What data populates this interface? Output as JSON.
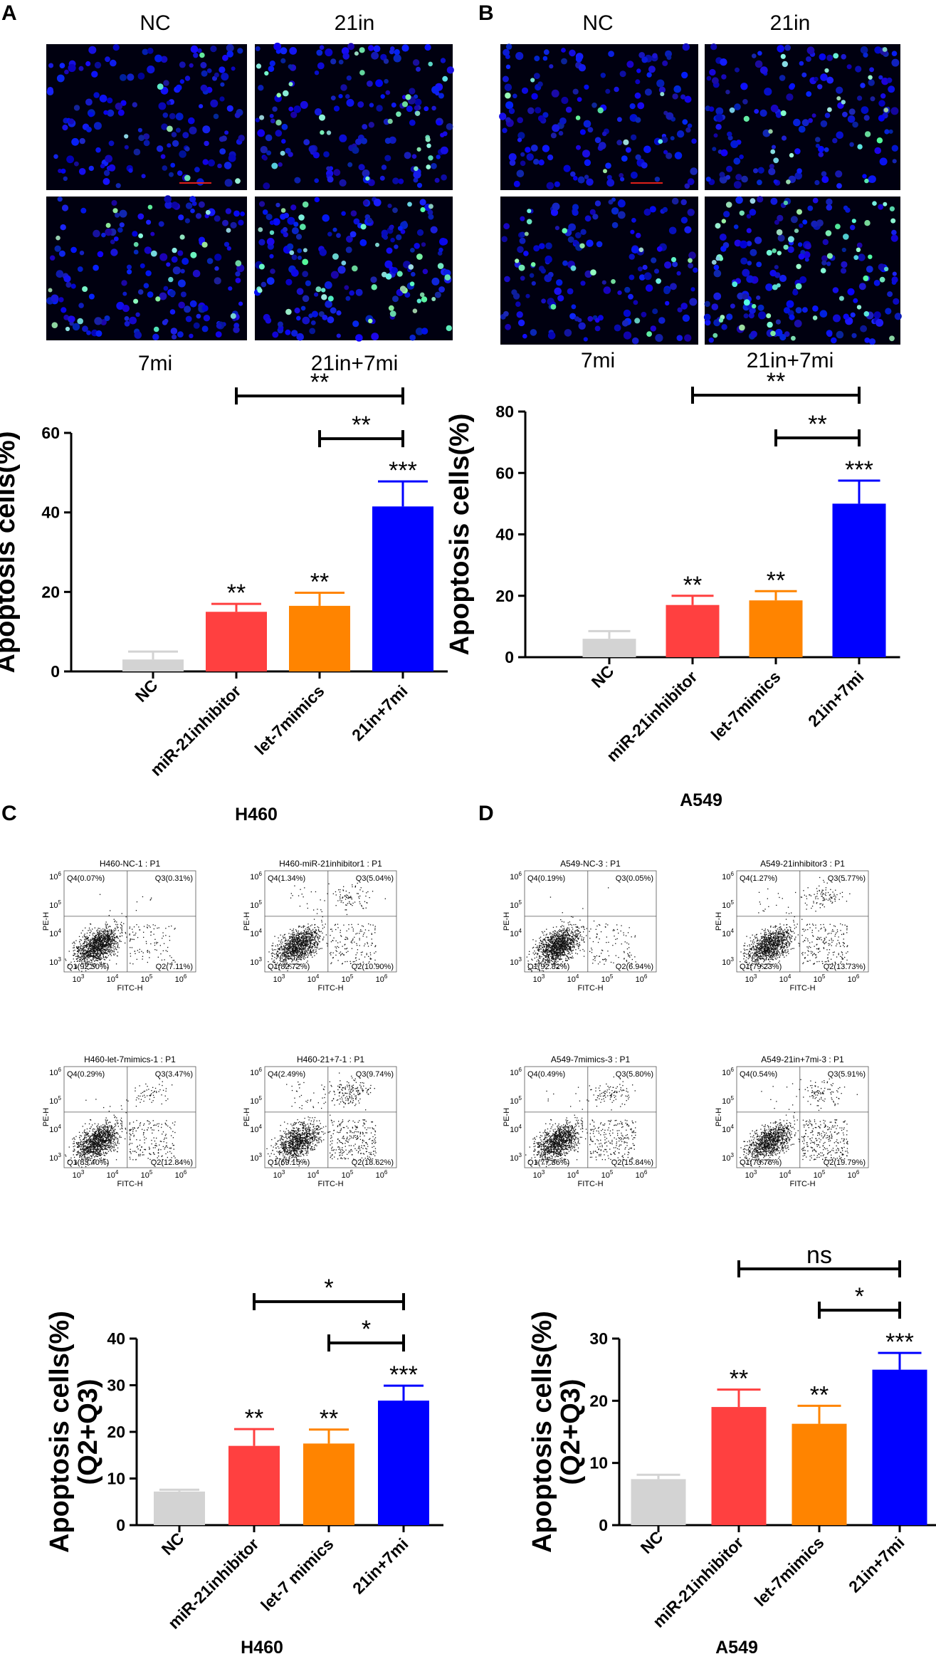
{
  "panels": {
    "A": {
      "letter": "A",
      "top_left": "NC",
      "top_right": "21in",
      "bottom_left": "7mi",
      "bottom_right": "21in+7mi"
    },
    "B": {
      "letter": "B",
      "top_left": "NC",
      "top_right": "21in",
      "bottom_left": "7mi",
      "bottom_right": "21in+7mi"
    },
    "C": {
      "letter": "C",
      "group": "H460"
    },
    "D": {
      "letter": "D",
      "group": "A549"
    }
  },
  "flow": {
    "C": [
      {
        "title": "H460-NC-1 : P1",
        "q4": "Q4(0.07%)",
        "q3": "Q3(0.31%)",
        "q1": "Q1(92.50%)",
        "q2": "Q2(7.11%)",
        "xlabel": "FITC-H",
        "ylabel": "PE-H"
      },
      {
        "title": "H460-miR-21inhibitor1 : P1",
        "q4": "Q4(1.34%)",
        "q3": "Q3(5.04%)",
        "q1": "Q1(82.72%)",
        "q2": "Q2(10.90%)",
        "xlabel": "FITC-H",
        "ylabel": "PE-H"
      },
      {
        "title": "H460-let-7mimics-1 : P1",
        "q4": "Q4(0.29%)",
        "q3": "Q3(3.47%)",
        "q1": "Q1(83.40%)",
        "q2": "Q2(12.84%)",
        "xlabel": "FITC-H",
        "ylabel": "PE-H"
      },
      {
        "title": "H460-21+7-1 : P1",
        "q4": "Q4(2.49%)",
        "q3": "Q3(9.74%)",
        "q1": "Q1(69.15%)",
        "q2": "Q2(18.62%)",
        "xlabel": "FITC-H",
        "ylabel": "PE-H"
      }
    ],
    "D": [
      {
        "title": "A549-NC-3 : P1",
        "q4": "Q4(0.19%)",
        "q3": "Q3(0.05%)",
        "q1": "Q1(92.82%)",
        "q2": "Q2(6.94%)",
        "xlabel": "FITC-H",
        "ylabel": "PE-H"
      },
      {
        "title": "A549-21inhibitor3 : P1",
        "q4": "Q4(1.27%)",
        "q3": "Q3(5.77%)",
        "q1": "Q1(79.23%)",
        "q2": "Q2(13.73%)",
        "xlabel": "FITC-H",
        "ylabel": "PE-H"
      },
      {
        "title": "A549-7mimics-3 : P1",
        "q4": "Q4(0.49%)",
        "q3": "Q3(5.80%)",
        "q1": "Q1(77.86%)",
        "q2": "Q2(15.84%)",
        "xlabel": "FITC-H",
        "ylabel": "PE-H"
      },
      {
        "title": "A549-21in+7mi-3 : P1",
        "q4": "Q4(0.54%)",
        "q3": "Q3(5.91%)",
        "q1": "Q1(73.76%)",
        "q2": "Q2(19.79%)",
        "xlabel": "FITC-H",
        "ylabel": "PE-H"
      }
    ]
  },
  "chart_data": [
    {
      "id": "A",
      "type": "bar",
      "ylabel": "Apoptosis cells(%)",
      "categories": [
        "NC",
        "miR-21inhibitor",
        "let-7mimics",
        "21in+7mi"
      ],
      "values": [
        3,
        15,
        16.5,
        41.5
      ],
      "errors": [
        2,
        2,
        3.3,
        6.3
      ],
      "colors": [
        "#d3d3d3",
        "#ff4040",
        "#ff8400",
        "#0000ff"
      ],
      "signif": [
        "",
        "**",
        "**",
        "***"
      ],
      "brackets": [
        {
          "from": 1,
          "to": 3,
          "label": "**"
        },
        {
          "from": 2,
          "to": 3,
          "label": "**"
        }
      ],
      "ylim": [
        0,
        60
      ],
      "yticks": [
        0,
        20,
        40,
        60
      ],
      "group": ""
    },
    {
      "id": "B",
      "type": "bar",
      "ylabel": "Apoptosis cells(%)",
      "categories": [
        "NC",
        "miR-21inhibitor",
        "let-7mimics",
        "21in+7mi"
      ],
      "values": [
        6,
        17,
        18.5,
        50
      ],
      "errors": [
        2.5,
        3,
        3,
        7.5
      ],
      "colors": [
        "#d3d3d3",
        "#ff4040",
        "#ff8400",
        "#0000ff"
      ],
      "signif": [
        "",
        "**",
        "**",
        "***"
      ],
      "brackets": [
        {
          "from": 1,
          "to": 3,
          "label": "**"
        },
        {
          "from": 2,
          "to": 3,
          "label": "**"
        }
      ],
      "ylim": [
        0,
        80
      ],
      "yticks": [
        0,
        20,
        40,
        60,
        80
      ],
      "group": "A549"
    },
    {
      "id": "C",
      "type": "bar",
      "ylabel": "Apoptosis cells(%)",
      "ylabel2": "(Q2+Q3)",
      "categories": [
        "NC",
        "miR-21inhibitor",
        "let-7 mimics",
        "21in+7mi"
      ],
      "values": [
        7.2,
        17,
        17.5,
        26.7
      ],
      "errors": [
        0.4,
        3.6,
        3,
        3.2
      ],
      "colors": [
        "#d3d3d3",
        "#ff4040",
        "#ff8400",
        "#0000ff"
      ],
      "signif": [
        "",
        "**",
        "**",
        "***"
      ],
      "brackets": [
        {
          "from": 1,
          "to": 3,
          "label": "*"
        },
        {
          "from": 2,
          "to": 3,
          "label": "*"
        }
      ],
      "ylim": [
        0,
        40
      ],
      "yticks": [
        0,
        10,
        20,
        30,
        40
      ],
      "group": "H460"
    },
    {
      "id": "D",
      "type": "bar",
      "ylabel": "Apoptosis cells(%)",
      "ylabel2": "(Q2+Q3)",
      "categories": [
        "NC",
        "miR-21inhibitor",
        "let-7mimics",
        "21in+7mi"
      ],
      "values": [
        7.4,
        19,
        16.3,
        25
      ],
      "errors": [
        0.7,
        2.8,
        2.9,
        2.7
      ],
      "colors": [
        "#d3d3d3",
        "#ff4040",
        "#ff8400",
        "#0000ff"
      ],
      "signif": [
        "",
        "**",
        "**",
        "***"
      ],
      "brackets": [
        {
          "from": 1,
          "to": 3,
          "label": "ns"
        },
        {
          "from": 2,
          "to": 3,
          "label": "*"
        }
      ],
      "ylim": [
        0,
        30
      ],
      "yticks": [
        0,
        10,
        20,
        30
      ],
      "group": "A549"
    }
  ]
}
